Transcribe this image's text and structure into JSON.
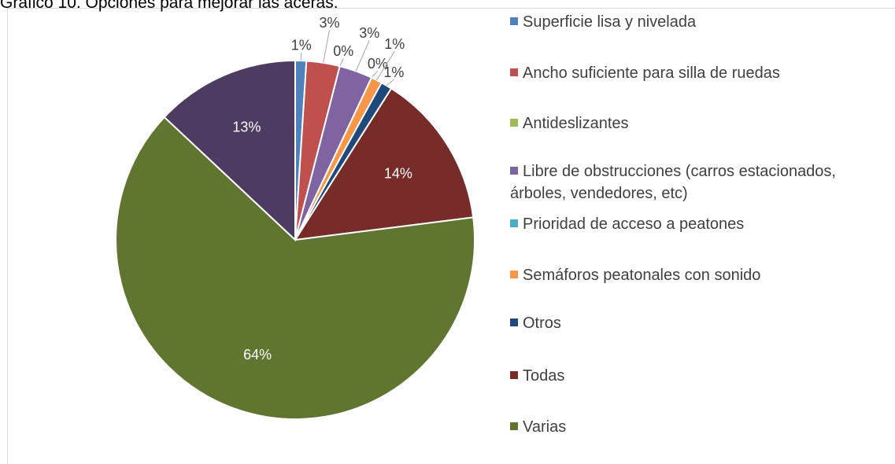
{
  "chart_data": {
    "type": "pie",
    "title": "Gráfico 10. Opciones para mejorar las aceras.",
    "categories": [
      "Superficie lisa y nivelada",
      "Ancho suficiente para silla de ruedas",
      "Antideslizantes",
      "Libre de obstrucciones (carros estacionados, árboles, vendedores, etc)",
      "Prioridad de acceso a peatones",
      "Semáforos peatonales con sonido",
      "Otros",
      "Todas",
      "Varias",
      null
    ],
    "values": [
      1,
      3,
      0,
      3,
      0,
      1,
      1,
      14,
      64,
      13
    ],
    "value_labels": [
      "1%",
      "3%",
      "0%",
      "3%",
      "0%",
      "1%",
      "1%",
      "14%",
      "64%",
      "13%"
    ],
    "colors": [
      "#4f81bd",
      "#c0504d",
      "#9bbb59",
      "#8064a2",
      "#4bacc6",
      "#f79646",
      "#1f497d",
      "#772c2a",
      "#5f7530",
      "#4d3b62"
    ],
    "legend": "right"
  }
}
